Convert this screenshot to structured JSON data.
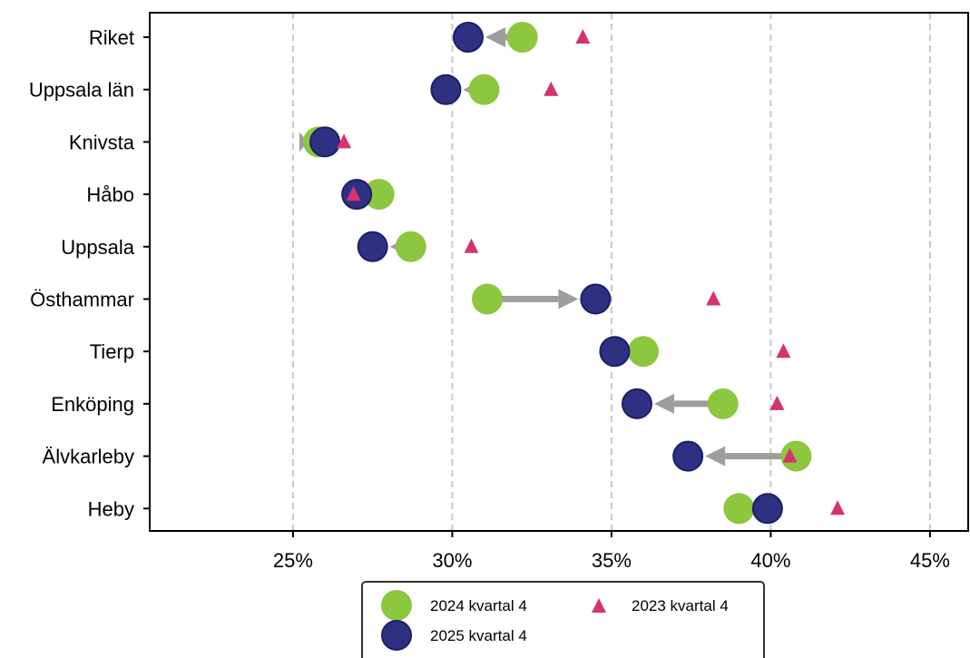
{
  "chart_data": {
    "type": "scatter",
    "title": "",
    "xlabel": "",
    "ylabel": "",
    "xlim": [
      21.6,
      46.6
    ],
    "x_ticks": [
      25,
      30,
      35,
      40,
      45
    ],
    "x_tick_labels": [
      "25%",
      "30%",
      "35%",
      "40%",
      "45%"
    ],
    "grid": "vertical dashed",
    "legend_position": "bottom-center",
    "categories": [
      "Riket",
      "Uppsala län",
      "Knivsta",
      "Håbo",
      "Uppsala",
      "Östhammar",
      "Tierp",
      "Enköping",
      "Älvkarleby",
      "Heby"
    ],
    "series": [
      {
        "name": "2024 kvartal 4",
        "marker": "circle",
        "color": "#8dc63f",
        "values": [
          32.2,
          31.0,
          25.8,
          27.7,
          28.7,
          31.1,
          36.0,
          38.5,
          40.8,
          39.0
        ]
      },
      {
        "name": "2025 kvartal 4",
        "marker": "circle",
        "color": "#2e3182",
        "values": [
          30.5,
          29.8,
          26.0,
          27.0,
          27.5,
          34.5,
          35.1,
          35.8,
          37.4,
          39.9
        ]
      },
      {
        "name": "2023 kvartal 4",
        "marker": "triangle",
        "color": "#d6336c",
        "values": [
          34.1,
          33.1,
          26.6,
          26.9,
          30.6,
          38.2,
          40.4,
          40.2,
          40.6,
          42.1
        ]
      }
    ],
    "arrows": "from 2024 kvartal 4 to 2025 kvartal 4",
    "arrow_color": "#9e9e9e"
  },
  "legend": {
    "items": [
      {
        "label": "2024 kvartal 4"
      },
      {
        "label": "2023 kvartal 4"
      },
      {
        "label": "2025 kvartal 4"
      }
    ]
  }
}
